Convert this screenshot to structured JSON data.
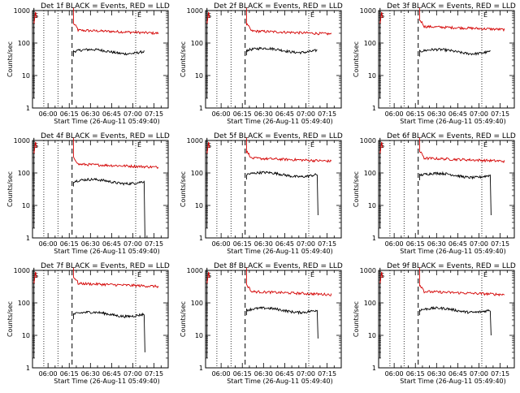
{
  "chart_data": [
    {
      "type": "line",
      "title": "Det 1f BLACK = Events, RED = LLD",
      "xlabel": "Start Time (26-Aug-11 05:49:40)",
      "ylabel": "Counts/sec",
      "yscale": "log",
      "ylim": [
        1,
        1000
      ],
      "x_tick_labels": [
        "06:00",
        "06:15",
        "06:30",
        "06:45",
        "07:00",
        "07:15"
      ],
      "y_tick_labels": [
        "1",
        "10",
        "100",
        "1000"
      ],
      "series": [
        {
          "color": "#d40000",
          "start": "06:18",
          "end": "07:18",
          "level": 200,
          "plateau_hi": 240
        },
        {
          "color": "#000000",
          "start": "06:18",
          "end": "07:08",
          "level": 55,
          "plateau_hi": 62,
          "drop_to": null
        }
      ],
      "markers": {
        "dotted": [
          "05:57",
          "06:07",
          "07:02"
        ],
        "dashed": [
          "06:17"
        ]
      }
    },
    {
      "type": "line",
      "title": "Det 2f BLACK = Events, RED = LLD",
      "xlabel": "Start Time (26-Aug-11 05:49:40)",
      "ylabel": "Counts/sec",
      "yscale": "log",
      "ylim": [
        1,
        1000
      ],
      "x_tick_labels": [
        "06:00",
        "06:15",
        "06:30",
        "06:45",
        "07:00",
        "07:15"
      ],
      "y_tick_labels": [
        "1",
        "10",
        "100",
        "1000"
      ],
      "series": [
        {
          "color": "#d40000",
          "start": "06:18",
          "end": "07:18",
          "level": 190,
          "plateau_hi": 230
        },
        {
          "color": "#000000",
          "start": "06:18",
          "end": "07:08",
          "level": 60,
          "plateau_hi": 80,
          "drop_to": null
        }
      ],
      "markers": {
        "dotted": [
          "05:57",
          "06:07",
          "07:02"
        ],
        "dashed": [
          "06:17"
        ]
      }
    },
    {
      "type": "line",
      "title": "Det 3f BLACK = Events, RED = LLD",
      "xlabel": "Start Time (26-Aug-11 05:49:40)",
      "ylabel": "Counts/sec",
      "yscale": "log",
      "ylim": [
        1,
        1000
      ],
      "x_tick_labels": [
        "06:00",
        "06:15",
        "06:30",
        "06:45",
        "07:00",
        "07:15"
      ],
      "y_tick_labels": [
        "1",
        "10",
        "100",
        "1000"
      ],
      "series": [
        {
          "color": "#d40000",
          "start": "06:18",
          "end": "07:18",
          "level": 260,
          "plateau_hi": 300
        },
        {
          "color": "#000000",
          "start": "06:18",
          "end": "07:08",
          "level": 55,
          "plateau_hi": 65,
          "drop_to": null
        }
      ],
      "markers": {
        "dotted": [
          "05:57",
          "06:07",
          "07:02"
        ],
        "dashed": [
          "06:17"
        ]
      }
    },
    {
      "type": "line",
      "title": "Det 4f BLACK = Events, RED = LLD",
      "xlabel": "Start Time (26-Aug-11 05:49:40)",
      "ylabel": "Counts/sec",
      "yscale": "log",
      "ylim": [
        1,
        1000
      ],
      "x_tick_labels": [
        "06:00",
        "06:15",
        "06:30",
        "06:45",
        "07:00",
        "07:15"
      ],
      "y_tick_labels": [
        "1",
        "10",
        "100",
        "1000"
      ],
      "series": [
        {
          "color": "#d40000",
          "start": "06:18",
          "end": "07:18",
          "level": 150,
          "plateau_hi": 200
        },
        {
          "color": "#000000",
          "start": "06:18",
          "end": "07:08",
          "level": 55,
          "plateau_hi": 65,
          "drop_to": 1
        }
      ],
      "markers": {
        "dotted": [
          "05:57",
          "06:07",
          "07:02"
        ],
        "dashed": [
          "06:17"
        ]
      }
    },
    {
      "type": "line",
      "title": "Det 5f BLACK = Events, RED = LLD",
      "xlabel": "Start Time (26-Aug-11 05:49:40)",
      "ylabel": "Counts/sec",
      "yscale": "log",
      "ylim": [
        1,
        1000
      ],
      "x_tick_labels": [
        "06:00",
        "06:15",
        "06:30",
        "06:45",
        "07:00",
        "07:15"
      ],
      "y_tick_labels": [
        "1",
        "10",
        "100",
        "1000"
      ],
      "series": [
        {
          "color": "#d40000",
          "start": "06:18",
          "end": "07:18",
          "level": 230,
          "plateau_hi": 300
        },
        {
          "color": "#000000",
          "start": "06:18",
          "end": "07:08",
          "level": 90,
          "plateau_hi": 110,
          "drop_to": 5
        }
      ],
      "markers": {
        "dotted": [
          "05:57",
          "06:07",
          "07:02"
        ],
        "dashed": [
          "06:17"
        ]
      }
    },
    {
      "type": "line",
      "title": "Det 6f BLACK = Events, RED = LLD",
      "xlabel": "Start Time (26-Aug-11 05:49:40)",
      "ylabel": "Counts/sec",
      "yscale": "log",
      "ylim": [
        1,
        1000
      ],
      "x_tick_labels": [
        "06:00",
        "06:15",
        "06:30",
        "06:45",
        "07:00",
        "07:15"
      ],
      "y_tick_labels": [
        "1",
        "10",
        "100",
        "1000"
      ],
      "series": [
        {
          "color": "#d40000",
          "start": "06:18",
          "end": "07:18",
          "level": 230,
          "plateau_hi": 300
        },
        {
          "color": "#000000",
          "start": "06:18",
          "end": "07:08",
          "level": 85,
          "plateau_hi": 100,
          "drop_to": 5
        }
      ],
      "markers": {
        "dotted": [
          "05:57",
          "06:07",
          "07:02"
        ],
        "dashed": [
          "06:17"
        ]
      }
    },
    {
      "type": "line",
      "title": "Det 7f BLACK = Events, RED = LLD",
      "xlabel": "Start Time (26-Aug-11 05:49:40)",
      "ylabel": "Counts/sec",
      "yscale": "log",
      "ylim": [
        1,
        1000
      ],
      "x_tick_labels": [
        "06:00",
        "06:15",
        "06:30",
        "06:45",
        "07:00",
        "07:15"
      ],
      "y_tick_labels": [
        "1",
        "10",
        "100",
        "1000"
      ],
      "series": [
        {
          "color": "#d40000",
          "start": "06:18",
          "end": "07:18",
          "level": 320,
          "plateau_hi": 400
        },
        {
          "color": "#000000",
          "start": "06:18",
          "end": "07:08",
          "level": 45,
          "plateau_hi": 55,
          "drop_to": 3
        }
      ],
      "markers": {
        "dotted": [
          "05:57",
          "06:07",
          "07:02"
        ],
        "dashed": [
          "06:17"
        ]
      }
    },
    {
      "type": "line",
      "title": "Det 8f BLACK = Events, RED = LLD",
      "xlabel": "Start Time (26-Aug-11 05:49:40)",
      "ylabel": "Counts/sec",
      "yscale": "log",
      "ylim": [
        1,
        1000
      ],
      "x_tick_labels": [
        "06:00",
        "06:15",
        "06:30",
        "06:45",
        "07:00",
        "07:15"
      ],
      "y_tick_labels": [
        "1",
        "10",
        "100",
        "1000"
      ],
      "series": [
        {
          "color": "#d40000",
          "start": "06:18",
          "end": "07:18",
          "level": 180,
          "plateau_hi": 230
        },
        {
          "color": "#000000",
          "start": "06:18",
          "end": "07:08",
          "level": 60,
          "plateau_hi": 70,
          "drop_to": 8
        }
      ],
      "markers": {
        "dotted": [
          "05:57",
          "06:07",
          "07:02"
        ],
        "dashed": [
          "06:17"
        ]
      }
    },
    {
      "type": "line",
      "title": "Det 9f BLACK = Events, RED = LLD",
      "xlabel": "Start Time (26-Aug-11 05:49:40)",
      "ylabel": "Counts/sec",
      "yscale": "log",
      "ylim": [
        1,
        1000
      ],
      "x_tick_labels": [
        "06:00",
        "06:15",
        "06:30",
        "06:45",
        "07:00",
        "07:15"
      ],
      "y_tick_labels": [
        "1",
        "10",
        "100",
        "1000"
      ],
      "series": [
        {
          "color": "#d40000",
          "start": "06:18",
          "end": "07:18",
          "level": 180,
          "plateau_hi": 230
        },
        {
          "color": "#000000",
          "start": "06:18",
          "end": "07:08",
          "level": 60,
          "plateau_hi": 70,
          "drop_to": 10
        }
      ],
      "markers": {
        "dotted": [
          "05:57",
          "06:07",
          "07:02"
        ],
        "dashed": [
          "06:17"
        ]
      }
    }
  ]
}
